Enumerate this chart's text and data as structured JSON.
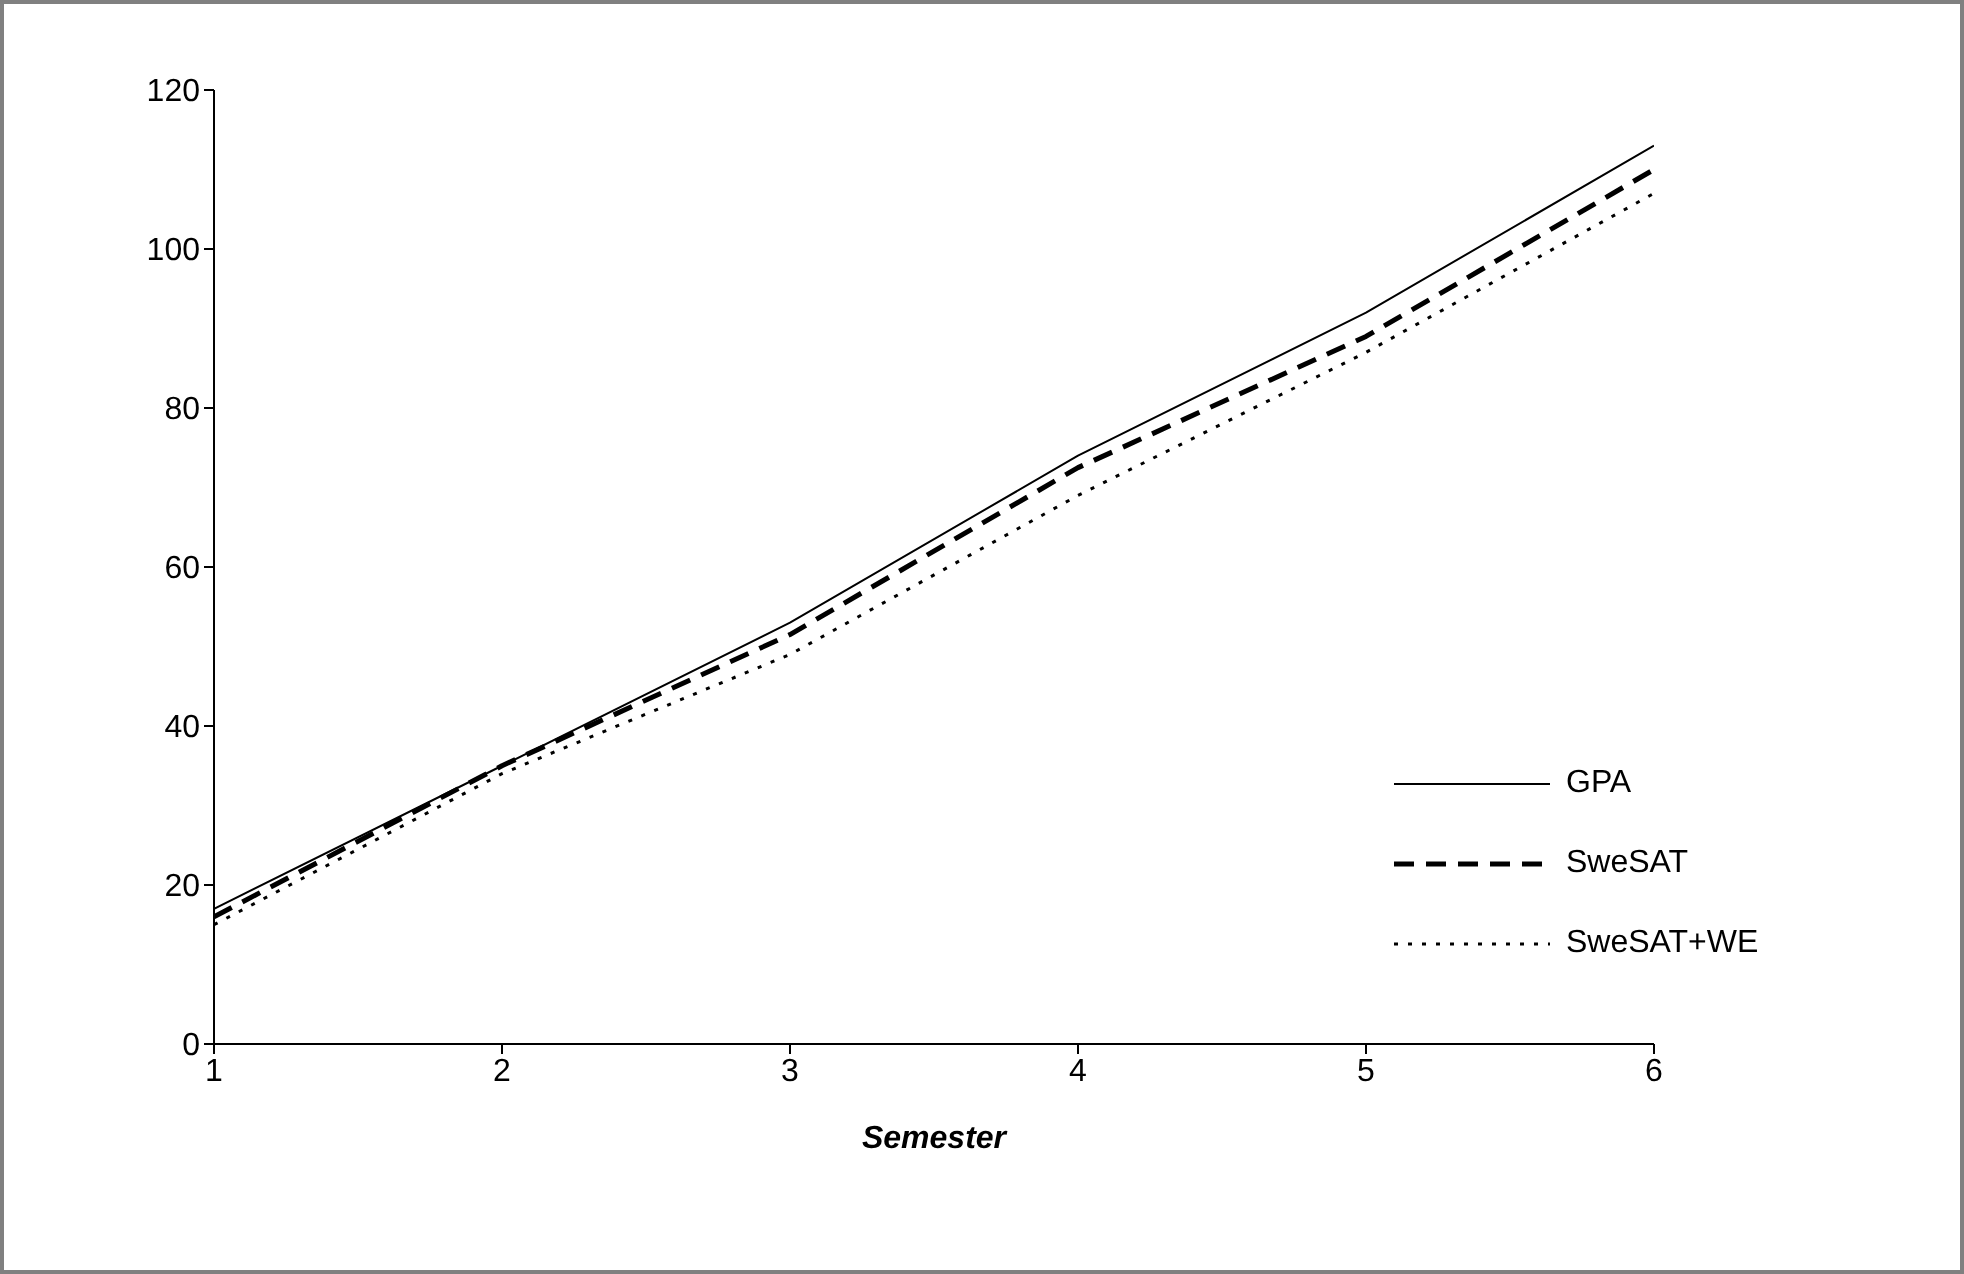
{
  "chart_data": {
    "type": "line",
    "xlabel": "Semester",
    "x": [
      1,
      2,
      3,
      4,
      5,
      6
    ],
    "series": [
      {
        "name": "GPA",
        "color": "#000000",
        "line_style": "solid",
        "values": [
          17,
          35,
          53,
          74,
          92,
          113
        ]
      },
      {
        "name": "SweSAT",
        "color": "#000000",
        "line_style": "dashed",
        "values": [
          16,
          35,
          51.5,
          72.5,
          89,
          110
        ]
      },
      {
        "name": "SweSAT+WE",
        "color": "#000000",
        "line_style": "dotted",
        "values": [
          15,
          34,
          49,
          69,
          87,
          107
        ]
      }
    ],
    "xlim": [
      1,
      6
    ],
    "xticks": [
      1,
      2,
      3,
      4,
      5,
      6
    ],
    "ylim": [
      0,
      120
    ],
    "yticks": [
      0,
      20,
      40,
      60,
      80,
      100,
      120
    ],
    "grid": false,
    "legend": "bottom right",
    "marker": "none"
  }
}
